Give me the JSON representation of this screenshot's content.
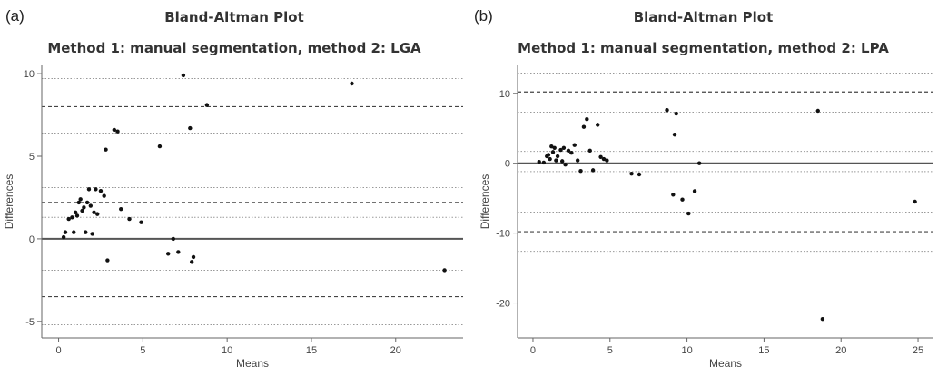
{
  "chart_data": [
    {
      "panel_label": "(a)",
      "type": "scatter",
      "title": "Bland-Altman Plot",
      "subtitle": "Method 1: manual segmentation, method 2: LGA",
      "xlabel": "Means",
      "ylabel": "Differences",
      "xlim": [
        -1,
        24
      ],
      "ylim": [
        -6,
        10.5
      ],
      "xticks": [
        0,
        5,
        10,
        15,
        20
      ],
      "yticks": [
        -5,
        0,
        5,
        10
      ],
      "x": [
        0.3,
        0.4,
        0.6,
        0.8,
        0.9,
        1.0,
        1.1,
        1.2,
        1.3,
        1.4,
        1.5,
        1.6,
        1.7,
        1.8,
        1.9,
        2.0,
        2.1,
        2.2,
        2.3,
        2.5,
        2.7,
        2.8,
        2.9,
        3.3,
        3.5,
        3.7,
        4.2,
        4.9,
        6.0,
        6.5,
        6.8,
        7.1,
        7.4,
        7.8,
        7.9,
        8.0,
        8.8,
        17.4,
        22.9
      ],
      "y": [
        0.1,
        0.4,
        1.2,
        1.3,
        0.4,
        1.6,
        1.4,
        2.2,
        2.4,
        1.7,
        1.9,
        0.4,
        2.2,
        3.0,
        2.0,
        0.3,
        1.6,
        3.0,
        1.5,
        2.9,
        2.6,
        5.4,
        -1.3,
        6.6,
        6.5,
        1.8,
        1.2,
        1.0,
        5.6,
        -0.9,
        0.0,
        -0.8,
        9.9,
        6.7,
        -1.4,
        -1.1,
        8.1,
        9.4,
        -1.9
      ],
      "hlines_solid": [
        0
      ],
      "hlines_dashed": [
        8.0,
        2.2,
        -3.5
      ],
      "hlines_dotted": [
        9.7,
        6.4,
        3.1,
        1.3,
        -1.9,
        -5.2
      ]
    },
    {
      "panel_label": "(b)",
      "type": "scatter",
      "title": "Bland-Altman Plot",
      "subtitle": "Method 1: manual segmentation, method 2: LPA",
      "xlabel": "Means",
      "ylabel": "Differences",
      "xlim": [
        -1,
        26
      ],
      "ylim": [
        -25,
        14
      ],
      "xticks": [
        0,
        5,
        10,
        15,
        20,
        25
      ],
      "yticks": [
        -20,
        -10,
        0,
        10
      ],
      "x": [
        0.4,
        0.7,
        0.9,
        1.0,
        1.1,
        1.2,
        1.3,
        1.4,
        1.5,
        1.6,
        1.8,
        1.9,
        2.0,
        2.1,
        2.3,
        2.5,
        2.7,
        2.9,
        3.1,
        3.3,
        3.5,
        3.7,
        3.9,
        4.2,
        4.4,
        4.6,
        4.8,
        6.4,
        6.9,
        8.7,
        9.1,
        9.2,
        9.3,
        9.7,
        10.1,
        10.5,
        10.8,
        18.5,
        18.8,
        24.8
      ],
      "y": [
        0.2,
        0.1,
        1.0,
        1.2,
        0.6,
        2.4,
        1.6,
        2.2,
        0.4,
        1.0,
        1.9,
        0.3,
        2.2,
        -0.2,
        1.8,
        1.5,
        2.6,
        0.4,
        -1.1,
        5.2,
        6.3,
        1.8,
        -1.0,
        5.5,
        0.9,
        0.6,
        0.4,
        -1.5,
        -1.6,
        7.6,
        -4.5,
        4.1,
        7.1,
        -5.2,
        -7.2,
        -4.0,
        0.0,
        7.5,
        -22.3,
        -5.5
      ],
      "hlines_solid": [
        0
      ],
      "hlines_dashed": [
        10.2,
        -9.8
      ],
      "hlines_dotted": [
        12.9,
        7.3,
        1.7,
        -1.2,
        -7.0,
        -12.6
      ]
    }
  ]
}
